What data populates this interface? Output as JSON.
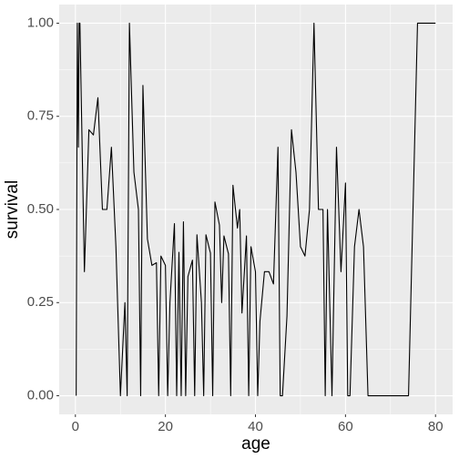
{
  "chart_data": {
    "type": "line",
    "x_label": "age",
    "y_label": "survival",
    "x": [
      0.17,
      0.42,
      0.67,
      0.83,
      1,
      2,
      3,
      4,
      5,
      6,
      7,
      8,
      9,
      10,
      11,
      11.5,
      12,
      13,
      14,
      14.5,
      15,
      16,
      17,
      18,
      18.5,
      19,
      20,
      20.5,
      21,
      22,
      22.5,
      23,
      23.5,
      24,
      24.5,
      25,
      26,
      26.5,
      27,
      28,
      28.5,
      29,
      30,
      30.5,
      31,
      32,
      32.5,
      33,
      34,
      34.5,
      35,
      36,
      36.5,
      37,
      38,
      38.5,
      39,
      40,
      40.5,
      41,
      42,
      43,
      44,
      45,
      45.5,
      46,
      47,
      48,
      49,
      50,
      51,
      52,
      53,
      54,
      55,
      55.5,
      56,
      57,
      58,
      59,
      60,
      60.5,
      61,
      62,
      63,
      64,
      65,
      66,
      67,
      70,
      70.5,
      71,
      74,
      76,
      80
    ],
    "series": [
      {
        "name": "survival",
        "color": "#000000",
        "values": [
          0,
          1,
          0.667,
          1,
          1,
          0.333,
          0.714,
          0.7,
          0.8,
          0.5,
          0.5,
          0.667,
          0.4,
          0,
          0.25,
          0,
          1,
          0.6,
          0.5,
          0,
          0.833,
          0.421,
          0.35,
          0.357,
          0,
          0.375,
          0.35,
          0,
          0.25,
          0.462,
          0,
          0.385,
          0,
          0.467,
          0,
          0.32,
          0.364,
          0,
          0.432,
          0.25,
          0,
          0.432,
          0.383,
          0,
          0.52,
          0.458,
          0.25,
          0.429,
          0.381,
          0,
          0.565,
          0.45,
          0.5,
          0.222,
          0.429,
          0,
          0.4,
          0.333,
          0,
          0.2,
          0.333,
          0.333,
          0.3,
          0.667,
          0,
          0,
          0.214,
          0.714,
          0.6,
          0.4,
          0.375,
          0.5,
          1,
          0.5,
          0.5,
          0,
          0.5,
          0,
          0.667,
          0.333,
          0.571,
          0,
          0,
          0.4,
          0.5,
          0.4,
          0,
          0,
          0,
          0,
          0,
          0,
          0,
          1,
          1
        ]
      }
    ],
    "xlim": [
      -3.6,
      83.8
    ],
    "xticks": [
      0,
      20,
      40,
      60,
      80
    ],
    "ylim": [
      -0.05,
      1.05
    ],
    "yticks": [
      {
        "value": 0,
        "label": "0.00"
      },
      {
        "value": 0.25,
        "label": "0.25"
      },
      {
        "value": 0.5,
        "label": "0.50"
      },
      {
        "value": 0.75,
        "label": "0.75"
      },
      {
        "value": 1,
        "label": "1.00"
      }
    ],
    "grid": true
  }
}
